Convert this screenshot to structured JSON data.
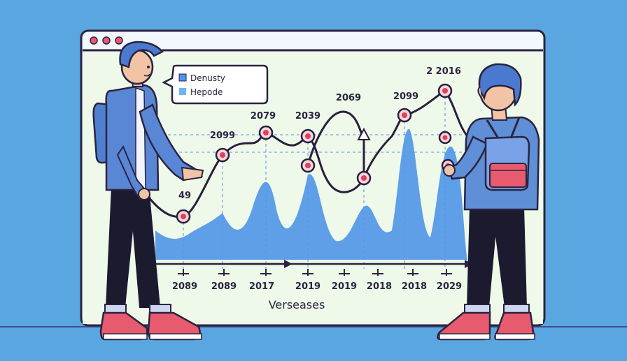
{
  "window": {
    "controls": [
      "dot",
      "dot",
      "dot"
    ],
    "bg": "#eef7ea",
    "frame": "#2a2440"
  },
  "legend": {
    "items": [
      {
        "label": "Denusty",
        "color": "#4f95e8"
      },
      {
        "label": "Hepode",
        "color": "#6fb3f2"
      }
    ]
  },
  "chart_data": {
    "type": "line",
    "x_tick_labels": [
      "2089",
      "2089",
      "2017",
      "2019",
      "2019",
      "2018",
      "2018",
      "2029"
    ],
    "xlabel": "Verseases",
    "point_labels": [
      "49",
      "2099",
      "2079",
      "2039",
      "2069",
      "2099",
      "2 2016"
    ],
    "series": [
      {
        "name": "Denusty",
        "color": "#2a1f3d",
        "marker": "#e0405a"
      },
      {
        "name": "Hepode",
        "color": "#4f95e8"
      }
    ]
  },
  "characters": [
    {
      "name": "left-person",
      "hoodie": "#4f7fcf",
      "pants": "#1c1a2e",
      "shoes": "#e85a6e"
    },
    {
      "name": "right-person",
      "hoodie": "#5f8fd6",
      "backpack": "#e85a6e"
    }
  ]
}
